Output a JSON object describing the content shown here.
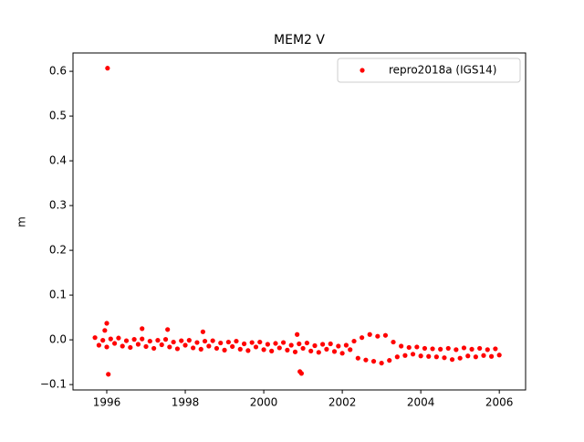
{
  "chart_data": {
    "type": "scatter",
    "title": "MEM2 V",
    "ylabel": "m",
    "xlim": [
      1995.14,
      2006.67
    ],
    "xticks": [
      1996,
      1998,
      2000,
      2002,
      2004,
      2006
    ],
    "ylim": [
      -0.112,
      0.641
    ],
    "yticks": [
      {
        "value": -0.1,
        "label": "−0.1"
      },
      {
        "value": 0,
        "label": "0.0"
      },
      0.1,
      0.2,
      0.3,
      0.4,
      0.5,
      0.6
    ],
    "legend": "upper right",
    "series": [
      {
        "name": "repro2018a (IGS14)",
        "color": "#ff0000",
        "x": [
          1995.7,
          1995.8,
          1995.9,
          1996.0,
          1996.1,
          1996.2,
          1996.3,
          1996.4,
          1996.5,
          1996.6,
          1996.7,
          1996.8,
          1996.9,
          1997.0,
          1997.1,
          1997.2,
          1997.3,
          1997.4,
          1997.5,
          1997.6,
          1997.7,
          1997.8,
          1997.9,
          1998.0,
          1998.1,
          1998.2,
          1998.3,
          1998.4,
          1998.5,
          1998.6,
          1998.7,
          1998.8,
          1998.9,
          1999.0,
          1999.1,
          1999.2,
          1999.3,
          1999.4,
          1999.5,
          1999.6,
          1999.7,
          1999.8,
          1999.9,
          2000.0,
          2000.1,
          2000.2,
          2000.3,
          2000.4,
          2000.5,
          2000.6,
          2000.7,
          2000.8,
          2000.9,
          2001.0,
          2001.1,
          2001.2,
          2001.3,
          2001.4,
          2001.5,
          2001.6,
          2001.7,
          2001.8,
          2001.9,
          2002.0,
          2002.1,
          2002.2,
          2002.3,
          2002.4,
          2002.5,
          2002.6,
          2002.7,
          2002.8,
          2002.9,
          2003.0,
          2003.1,
          2003.2,
          2003.3,
          2003.4,
          2003.5,
          2003.6,
          2003.7,
          2003.8,
          2003.9,
          2004.0,
          2004.1,
          2004.2,
          2004.3,
          2004.4,
          2004.5,
          2004.6,
          2004.7,
          2004.8,
          2004.9,
          2005.0,
          2005.1,
          2005.2,
          2005.3,
          2005.4,
          2005.5,
          2005.6,
          2005.7,
          2005.8,
          2005.9,
          2006.0,
          1996.02,
          1996.04,
          1996.0,
          1995.95,
          1996.9,
          1997.55,
          2000.92,
          2000.96,
          2000.85,
          1998.45
        ],
        "values": [
          0.005,
          -0.012,
          -0.001,
          -0.016,
          0.002,
          -0.008,
          0.004,
          -0.014,
          -0.002,
          -0.017,
          0.001,
          -0.01,
          0.002,
          -0.015,
          -0.003,
          -0.019,
          -0.001,
          -0.011,
          0.001,
          -0.016,
          -0.005,
          -0.02,
          -0.002,
          -0.012,
          -0.001,
          -0.018,
          -0.006,
          -0.021,
          -0.003,
          -0.014,
          -0.002,
          -0.019,
          -0.007,
          -0.023,
          -0.005,
          -0.015,
          -0.003,
          -0.021,
          -0.009,
          -0.024,
          -0.006,
          -0.016,
          -0.005,
          -0.022,
          -0.01,
          -0.025,
          -0.008,
          -0.018,
          -0.006,
          -0.023,
          -0.012,
          -0.027,
          -0.009,
          -0.019,
          -0.007,
          -0.025,
          -0.013,
          -0.028,
          -0.01,
          -0.021,
          -0.009,
          -0.026,
          -0.014,
          -0.03,
          -0.012,
          -0.022,
          -0.003,
          -0.041,
          0.005,
          -0.045,
          0.012,
          -0.048,
          0.008,
          -0.052,
          0.01,
          -0.046,
          -0.005,
          -0.038,
          -0.014,
          -0.035,
          -0.017,
          -0.032,
          -0.016,
          -0.036,
          -0.019,
          -0.037,
          -0.02,
          -0.038,
          -0.021,
          -0.04,
          -0.019,
          -0.044,
          -0.022,
          -0.041,
          -0.018,
          -0.036,
          -0.021,
          -0.038,
          -0.019,
          -0.035,
          -0.022,
          -0.037,
          -0.02,
          -0.034,
          0.607,
          -0.077,
          0.037,
          0.021,
          0.025,
          0.023,
          -0.071,
          -0.075,
          0.012,
          0.018
        ]
      }
    ]
  }
}
